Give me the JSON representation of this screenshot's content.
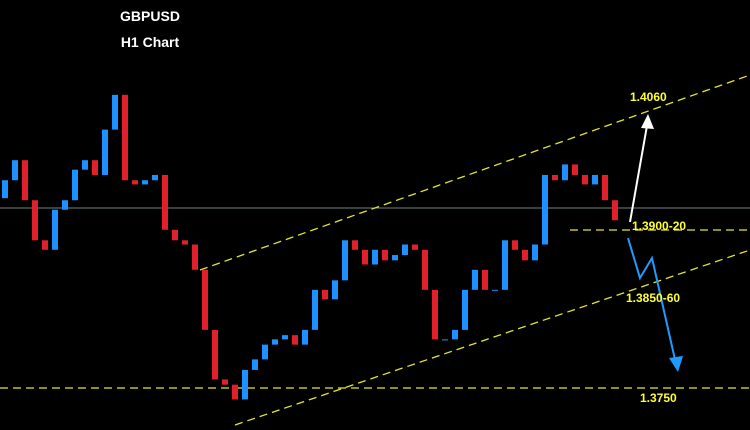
{
  "chart_data": {
    "type": "candlestick",
    "title": "GBPUSD",
    "subtitle": "H1 Chart",
    "up_color": "#1e90ff",
    "down_color": "#e0202a",
    "ylim": [
      1.371,
      1.4118
    ],
    "open": [
      1.393,
      1.3947,
      1.3966,
      1.3928,
      1.389,
      1.3881,
      1.3919,
      1.3928,
      1.3957,
      1.3966,
      1.3952,
      1.3995,
      1.4028,
      1.3947,
      1.3943,
      1.3947,
      1.3952,
      1.39,
      1.389,
      1.3886,
      1.3862,
      1.3805,
      1.3758,
      1.3753,
      1.3739,
      1.3767,
      1.3777,
      1.3791,
      1.3796,
      1.38,
      1.3791,
      1.3805,
      1.3843,
      1.3834,
      1.3852,
      1.389,
      1.3881,
      1.3867,
      1.3881,
      1.3871,
      1.3876,
      1.3886,
      1.3881,
      1.3843,
      1.3796,
      1.3796,
      1.3805,
      1.3843,
      1.3862,
      1.3843,
      1.3843,
      1.389,
      1.3881,
      1.3871,
      1.3886,
      1.3952,
      1.3947,
      1.3962,
      1.3952,
      1.3943,
      1.3952,
      1.3928
    ],
    "close": [
      1.3947,
      1.3966,
      1.3928,
      1.389,
      1.3881,
      1.3919,
      1.3928,
      1.3957,
      1.3966,
      1.3952,
      1.3995,
      1.4028,
      1.3947,
      1.3943,
      1.3947,
      1.3952,
      1.39,
      1.389,
      1.3886,
      1.3862,
      1.3805,
      1.3758,
      1.3753,
      1.3739,
      1.3767,
      1.3777,
      1.3791,
      1.3796,
      1.38,
      1.3791,
      1.3805,
      1.3843,
      1.3834,
      1.3852,
      1.389,
      1.3881,
      1.3867,
      1.3881,
      1.3871,
      1.3876,
      1.3886,
      1.3881,
      1.3843,
      1.3796,
      1.3796,
      1.3805,
      1.3843,
      1.3862,
      1.3843,
      1.3843,
      1.389,
      1.3881,
      1.3871,
      1.3886,
      1.3952,
      1.3947,
      1.3962,
      1.3952,
      1.3943,
      1.3952,
      1.3928,
      1.3909
    ],
    "annotations": [
      "1.4060",
      "1.3900-20",
      "1.3850-60",
      "1.3750"
    ]
  }
}
